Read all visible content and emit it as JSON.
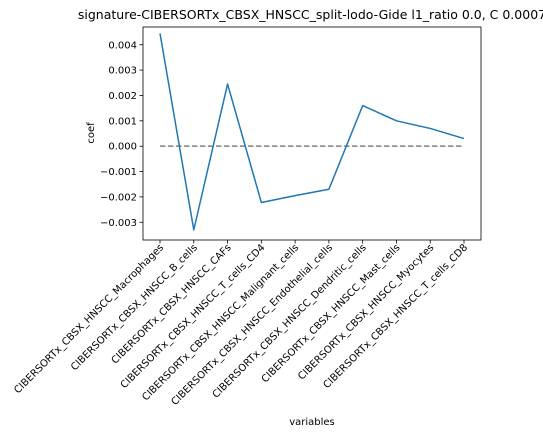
{
  "chart_data": {
    "type": "line",
    "title": "signature-CIBERSORTx_CBSX_HNSCC_split-lodo-Gide l1_ratio 0.0, C 0.0007",
    "xlabel": "variables",
    "ylabel": "coef",
    "categories": [
      "CIBERSORTx_CBSX_HNSCC_Macrophages",
      "CIBERSORTx_CBSX_HNSCC_B_cells",
      "CIBERSORTx_CBSX_HNSCC_CAFs",
      "CIBERSORTx_CBSX_HNSCC_T_cells_CD4",
      "CIBERSORTx_CBSX_HNSCC_Malignant_cells",
      "CIBERSORTx_CBSX_HNSCC_Endothelial_cells",
      "CIBERSORTx_CBSX_HNSCC_Dendritic_cells",
      "CIBERSORTx_CBSX_HNSCC_Mast_cells",
      "CIBERSORTx_CBSX_HNSCC_Myocytes",
      "CIBERSORTx_CBSX_HNSCC_T_cells_CD8"
    ],
    "series": [
      {
        "values": [
          0.00445,
          -0.0033,
          0.00245,
          -0.00222,
          -0.00195,
          -0.0017,
          0.0016,
          0.001,
          0.0007,
          0.0003
        ]
      }
    ],
    "reference_line": {
      "y": 0.0,
      "style": "dashed"
    },
    "ylim": [
      -0.0037,
      0.0047
    ],
    "yticks": [
      -0.003,
      -0.002,
      -0.001,
      0.0,
      0.001,
      0.002,
      0.003,
      0.004
    ],
    "ytick_labels": [
      "−0.003",
      "−0.002",
      "−0.001",
      "0.000",
      "0.001",
      "0.002",
      "0.003",
      "0.004"
    ],
    "line_color": "#1f77b4",
    "reference_color": "#808080",
    "grid": false,
    "legend": false
  }
}
